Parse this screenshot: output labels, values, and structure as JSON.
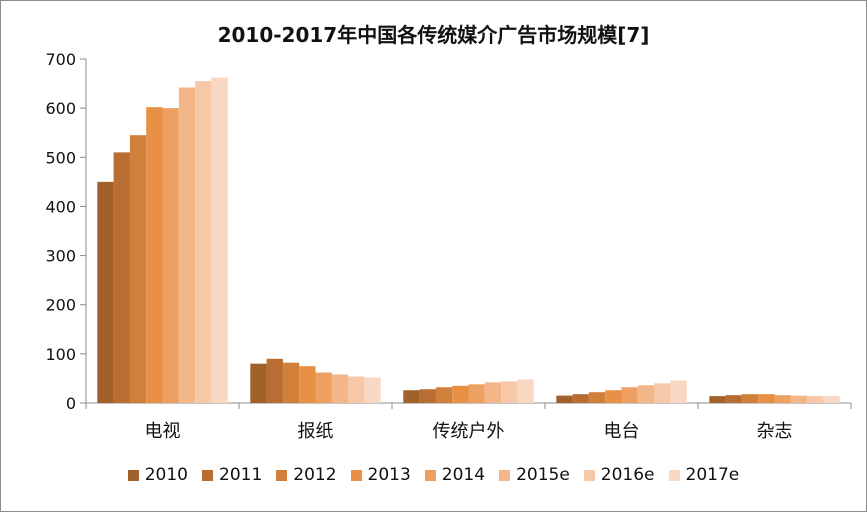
{
  "chart_data": {
    "type": "bar",
    "title": "2010-2017年中国各传统媒介广告市场规模[7]",
    "categories": [
      "电视",
      "报纸",
      "传统户外",
      "电台",
      "杂志"
    ],
    "ylim": [
      0,
      700
    ],
    "yticks": [
      0,
      100,
      200,
      300,
      400,
      500,
      600,
      700
    ],
    "grid": false,
    "legend_position": "bottom",
    "series": [
      {
        "name": "2010",
        "color": "#a0612b",
        "values": [
          450,
          80,
          26,
          15,
          14
        ]
      },
      {
        "name": "2011",
        "color": "#b86d33",
        "values": [
          510,
          90,
          28,
          18,
          16
        ]
      },
      {
        "name": "2012",
        "color": "#d1803c",
        "values": [
          545,
          82,
          32,
          22,
          18
        ]
      },
      {
        "name": "2013",
        "color": "#e89046",
        "values": [
          602,
          75,
          35,
          26,
          18
        ]
      },
      {
        "name": "2014",
        "color": "#ee9f62",
        "values": [
          600,
          62,
          38,
          32,
          16
        ]
      },
      {
        "name": "2015e",
        "color": "#f2b688",
        "values": [
          642,
          58,
          42,
          36,
          15
        ]
      },
      {
        "name": "2016e",
        "color": "#f6c8a8",
        "values": [
          655,
          54,
          44,
          40,
          14
        ]
      },
      {
        "name": "2017e",
        "color": "#f9d8c3",
        "values": [
          662,
          52,
          48,
          46,
          14
        ]
      }
    ]
  }
}
